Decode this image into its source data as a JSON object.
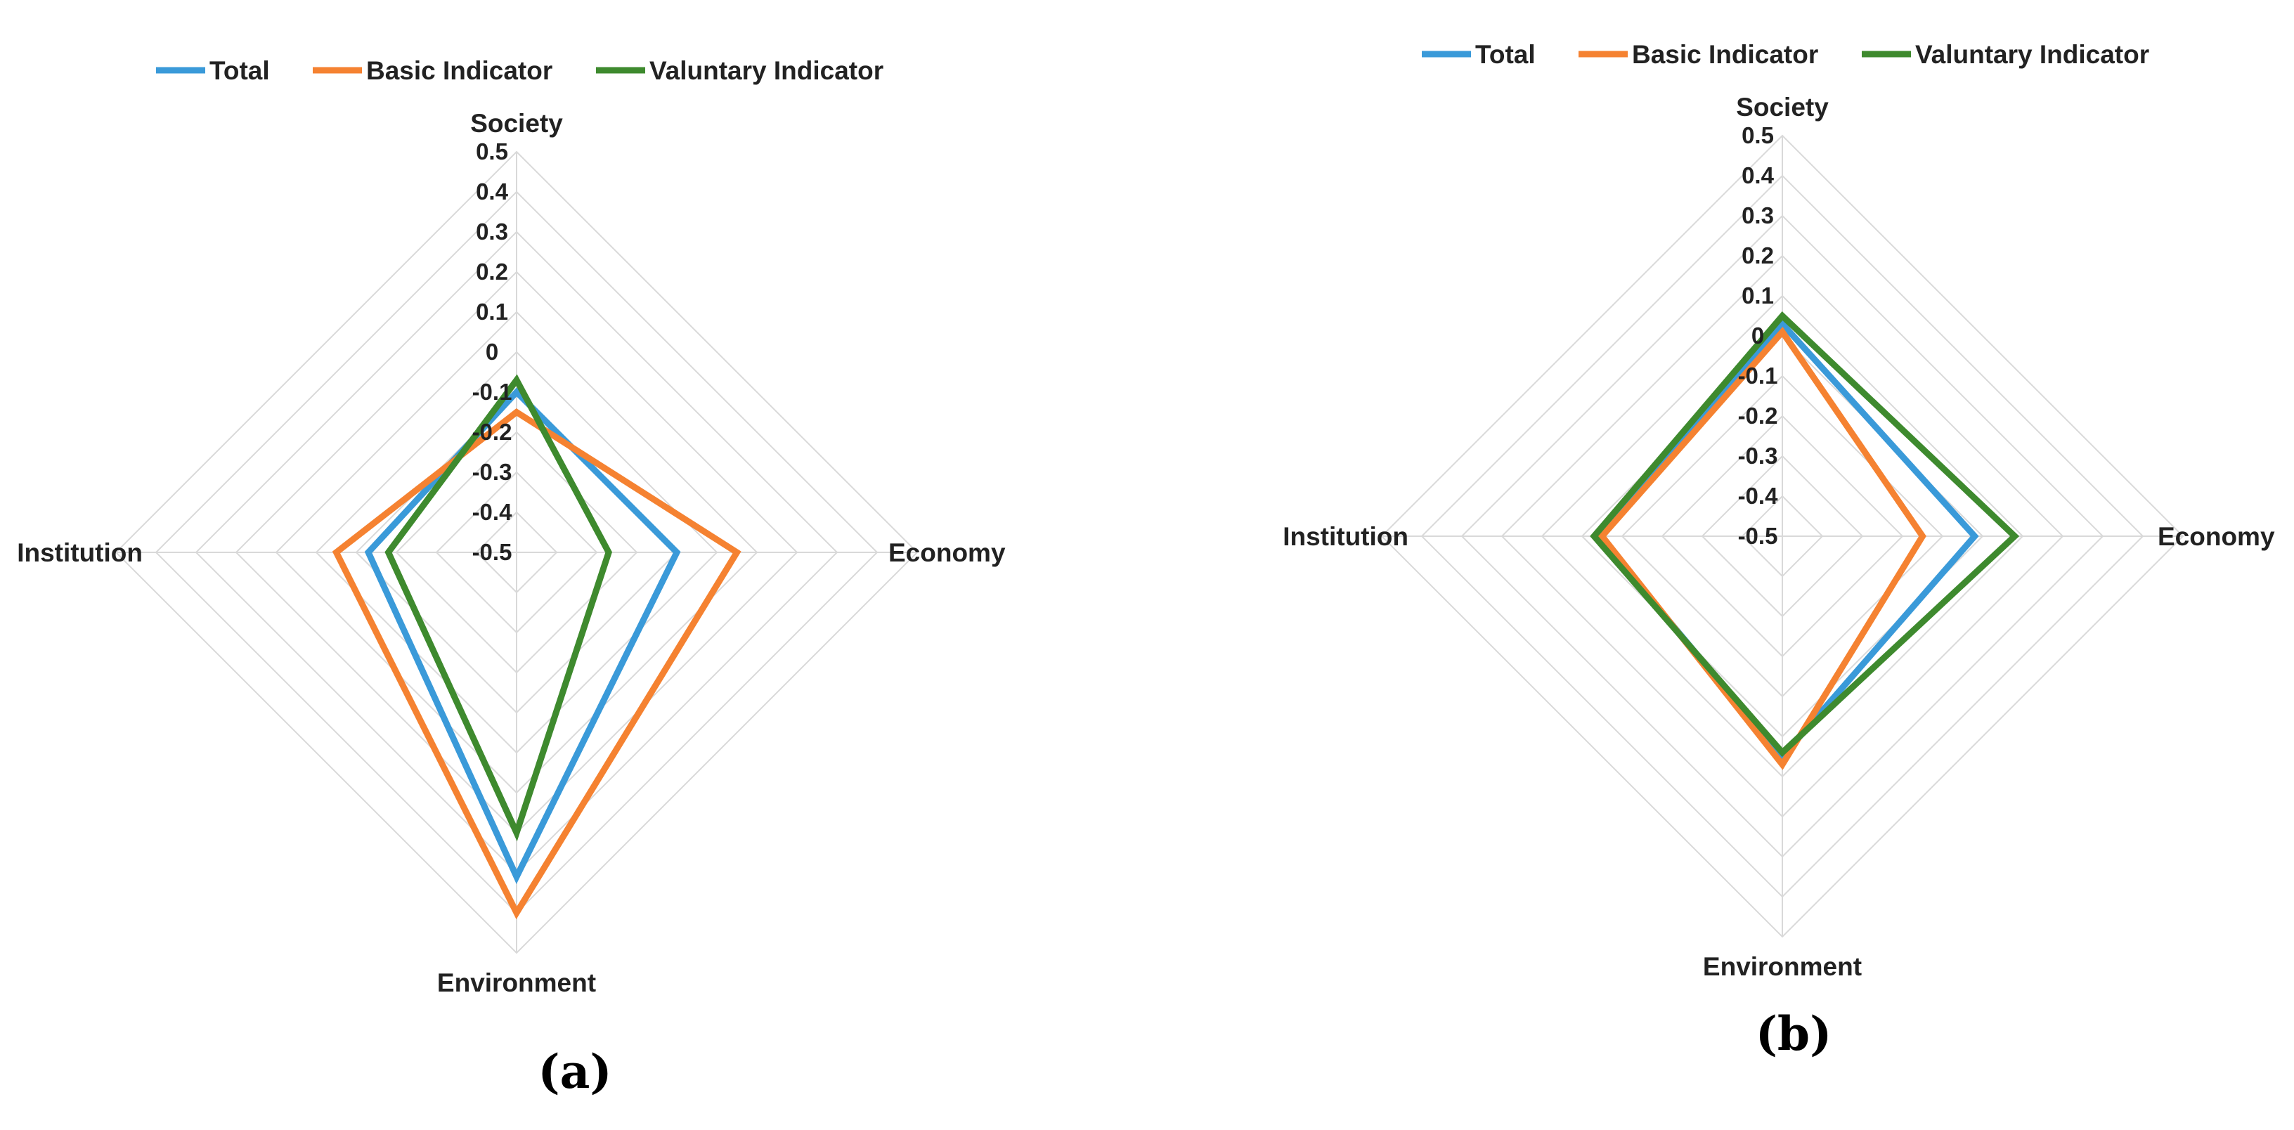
{
  "chart_data": [
    {
      "type": "radar",
      "panel_label": "(a)",
      "axes": [
        "Society",
        "Economy",
        "Environment",
        "Institution"
      ],
      "rmin": -0.5,
      "rmax": 0.5,
      "ticks": [
        "0.5",
        "0.4",
        "0.3",
        "0.2",
        "0.1",
        "0",
        "-0.1",
        "-0.2",
        "-0.3",
        "-0.4",
        "-0.5"
      ],
      "tick_values": [
        0.5,
        0.4,
        0.3,
        0.2,
        0.1,
        0,
        -0.1,
        -0.2,
        -0.3,
        -0.4,
        -0.5
      ],
      "legend_position": "top",
      "series": [
        {
          "name": "Total",
          "color": "#3a9ad9",
          "values": [
            -0.1,
            -0.1,
            0.31,
            -0.13
          ]
        },
        {
          "name": "Basic Indicator",
          "color": "#f58231",
          "values": [
            -0.15,
            0.05,
            0.4,
            -0.05
          ]
        },
        {
          "name": "Valuntary Indicator",
          "color": "#3e8a2e",
          "values": [
            -0.07,
            -0.27,
            0.2,
            -0.18
          ]
        }
      ]
    },
    {
      "type": "radar",
      "panel_label": "(b)",
      "axes": [
        "Society",
        "Economy",
        "Environment",
        "Institution"
      ],
      "rmin": -0.5,
      "rmax": 0.5,
      "ticks": [
        "0.5",
        "0.4",
        "0.3",
        "0.2",
        "0.1",
        "0",
        "-0.1",
        "-0.2",
        "-0.3",
        "-0.4",
        "-0.5"
      ],
      "tick_values": [
        0.5,
        0.4,
        0.3,
        0.2,
        0.1,
        0,
        -0.1,
        -0.2,
        -0.3,
        -0.4,
        -0.5
      ],
      "legend_position": "top",
      "series": [
        {
          "name": "Total",
          "color": "#3a9ad9",
          "values": [
            0.03,
            -0.02,
            0.05,
            -0.04
          ]
        },
        {
          "name": "Basic Indicator",
          "color": "#f58231",
          "values": [
            0.01,
            -0.15,
            0.07,
            -0.05
          ]
        },
        {
          "name": "Valuntary Indicator",
          "color": "#3e8a2e",
          "values": [
            0.05,
            0.08,
            0.04,
            -0.03
          ]
        }
      ]
    }
  ]
}
